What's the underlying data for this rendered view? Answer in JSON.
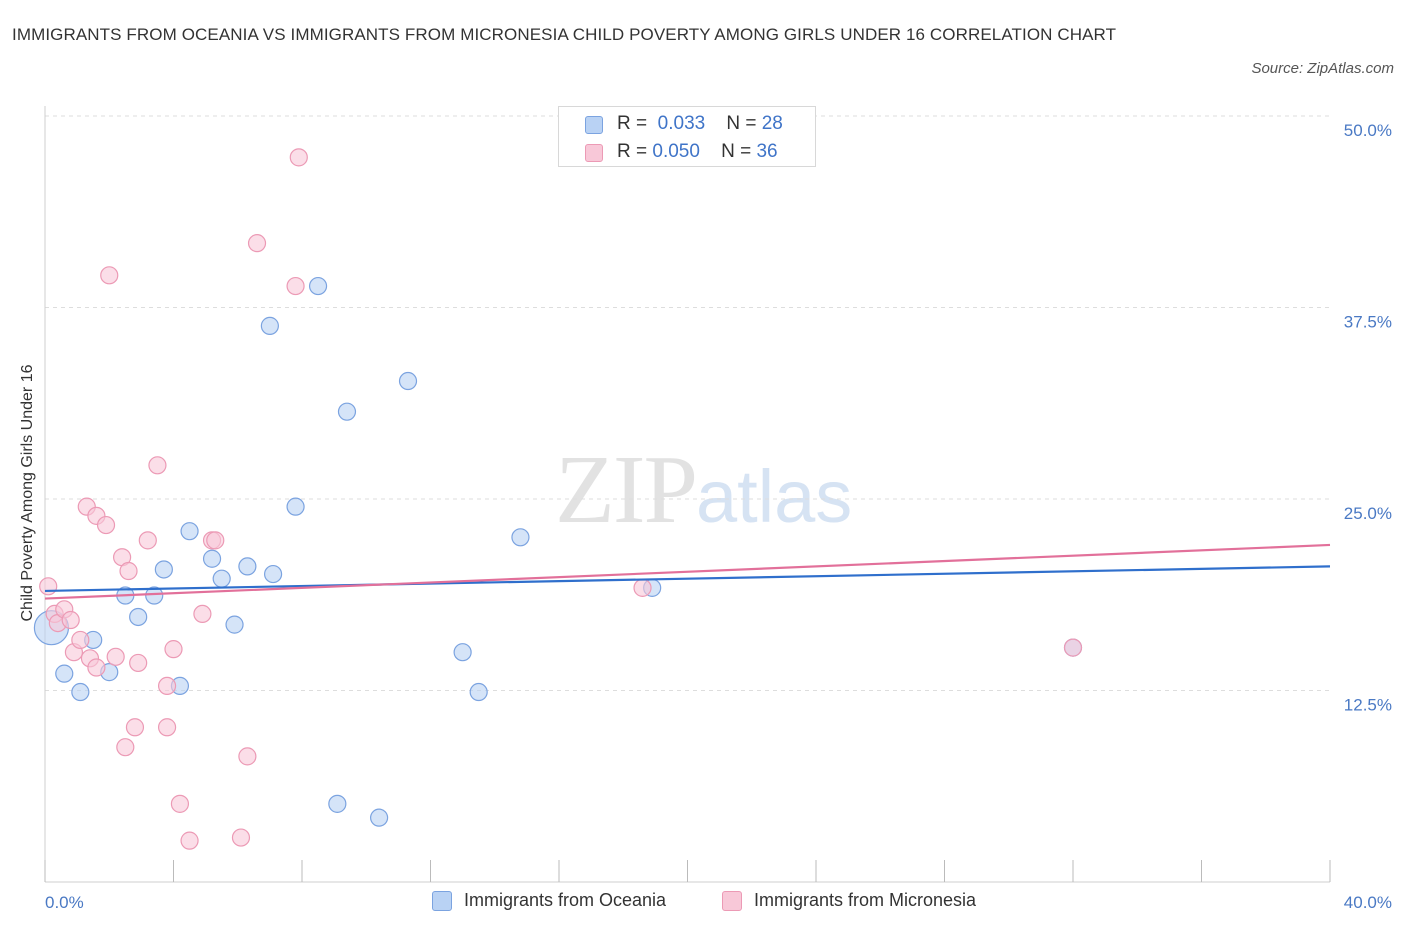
{
  "title": "IMMIGRANTS FROM OCEANIA VS IMMIGRANTS FROM MICRONESIA CHILD POVERTY AMONG GIRLS UNDER 16 CORRELATION CHART",
  "source": "Source: ZipAtlas.com",
  "watermark": {
    "zip": "ZIP",
    "atlas": "atlas"
  },
  "colors": {
    "oceania_fill": "#b9d2f4",
    "oceania_stroke": "#7ba3e0",
    "oceania_line": "#2f6fcc",
    "micronesia_fill": "#f8c8d8",
    "micronesia_stroke": "#ec9ab5",
    "micronesia_line": "#e2709a",
    "tick": "#4a79c4",
    "grid": "#dddddd"
  },
  "stats": [
    {
      "r_label": "R =",
      "r_value": "0.033",
      "n_label": "N =",
      "n_value": "28"
    },
    {
      "r_label": "R =",
      "r_value": "0.050",
      "n_label": "N =",
      "n_value": "36"
    }
  ],
  "legend": [
    "Immigrants from Oceania",
    "Immigrants from Micronesia"
  ],
  "chart_data": {
    "type": "scatter",
    "ylabel": "Child Poverty Among Girls Under 16",
    "xlim": [
      0,
      40
    ],
    "ylim": [
      0,
      50
    ],
    "x_tick_labels": [
      {
        "value": 0,
        "label": "0.0%"
      },
      {
        "value": 40,
        "label": "40.0%"
      }
    ],
    "y_tick_labels": [
      {
        "value": 12.5,
        "label": "12.5%"
      },
      {
        "value": 25,
        "label": "25.0%"
      },
      {
        "value": 37.5,
        "label": "37.5%"
      },
      {
        "value": 50,
        "label": "50.0%"
      }
    ],
    "grid": true,
    "legend_position": "bottom",
    "series": [
      {
        "name": "Immigrants from Oceania",
        "trend": {
          "x": [
            0,
            40
          ],
          "y": [
            19.0,
            20.6
          ]
        },
        "points": [
          {
            "x": 0.2,
            "y": 16.6,
            "size": "large"
          },
          {
            "x": 0.6,
            "y": 13.6
          },
          {
            "x": 1.1,
            "y": 12.4
          },
          {
            "x": 1.5,
            "y": 15.8
          },
          {
            "x": 2.0,
            "y": 13.7
          },
          {
            "x": 2.5,
            "y": 18.7
          },
          {
            "x": 2.9,
            "y": 17.3
          },
          {
            "x": 3.4,
            "y": 18.7
          },
          {
            "x": 3.7,
            "y": 20.4
          },
          {
            "x": 4.2,
            "y": 12.8
          },
          {
            "x": 4.5,
            "y": 22.9
          },
          {
            "x": 5.2,
            "y": 21.1
          },
          {
            "x": 5.5,
            "y": 19.8
          },
          {
            "x": 5.9,
            "y": 16.8
          },
          {
            "x": 6.3,
            "y": 20.6
          },
          {
            "x": 7.0,
            "y": 36.3
          },
          {
            "x": 7.1,
            "y": 20.1
          },
          {
            "x": 7.8,
            "y": 24.5
          },
          {
            "x": 8.5,
            "y": 38.9
          },
          {
            "x": 9.1,
            "y": 5.1
          },
          {
            "x": 9.4,
            "y": 30.7
          },
          {
            "x": 10.4,
            "y": 4.2
          },
          {
            "x": 11.3,
            "y": 32.7
          },
          {
            "x": 13.0,
            "y": 15.0
          },
          {
            "x": 13.5,
            "y": 12.4
          },
          {
            "x": 14.8,
            "y": 22.5
          },
          {
            "x": 18.9,
            "y": 19.2
          },
          {
            "x": 32.0,
            "y": 15.3
          }
        ]
      },
      {
        "name": "Immigrants from Micronesia",
        "trend": {
          "x": [
            0,
            40
          ],
          "y": [
            18.5,
            22.0
          ]
        },
        "points": [
          {
            "x": 0.1,
            "y": 19.3
          },
          {
            "x": 0.3,
            "y": 17.5
          },
          {
            "x": 0.4,
            "y": 16.9
          },
          {
            "x": 0.6,
            "y": 17.8
          },
          {
            "x": 0.8,
            "y": 17.1
          },
          {
            "x": 0.9,
            "y": 15.0
          },
          {
            "x": 1.1,
            "y": 15.8
          },
          {
            "x": 1.3,
            "y": 24.5
          },
          {
            "x": 1.4,
            "y": 14.6
          },
          {
            "x": 1.6,
            "y": 23.9
          },
          {
            "x": 1.6,
            "y": 14.0
          },
          {
            "x": 1.9,
            "y": 23.3
          },
          {
            "x": 2.0,
            "y": 39.6
          },
          {
            "x": 2.2,
            "y": 14.7
          },
          {
            "x": 2.4,
            "y": 21.2
          },
          {
            "x": 2.5,
            "y": 8.8
          },
          {
            "x": 2.6,
            "y": 20.3
          },
          {
            "x": 2.8,
            "y": 10.1
          },
          {
            "x": 2.9,
            "y": 14.3
          },
          {
            "x": 3.2,
            "y": 22.3
          },
          {
            "x": 3.5,
            "y": 27.2
          },
          {
            "x": 3.8,
            "y": 10.1
          },
          {
            "x": 3.8,
            "y": 12.8
          },
          {
            "x": 4.0,
            "y": 15.2
          },
          {
            "x": 4.2,
            "y": 5.1
          },
          {
            "x": 4.5,
            "y": 2.7
          },
          {
            "x": 4.9,
            "y": 17.5
          },
          {
            "x": 5.2,
            "y": 22.3
          },
          {
            "x": 5.3,
            "y": 22.3
          },
          {
            "x": 6.1,
            "y": 2.9
          },
          {
            "x": 6.3,
            "y": 8.2
          },
          {
            "x": 6.6,
            "y": 41.7
          },
          {
            "x": 7.8,
            "y": 38.9
          },
          {
            "x": 7.9,
            "y": 47.3
          },
          {
            "x": 18.6,
            "y": 19.2
          },
          {
            "x": 32.0,
            "y": 15.3
          }
        ]
      }
    ]
  }
}
